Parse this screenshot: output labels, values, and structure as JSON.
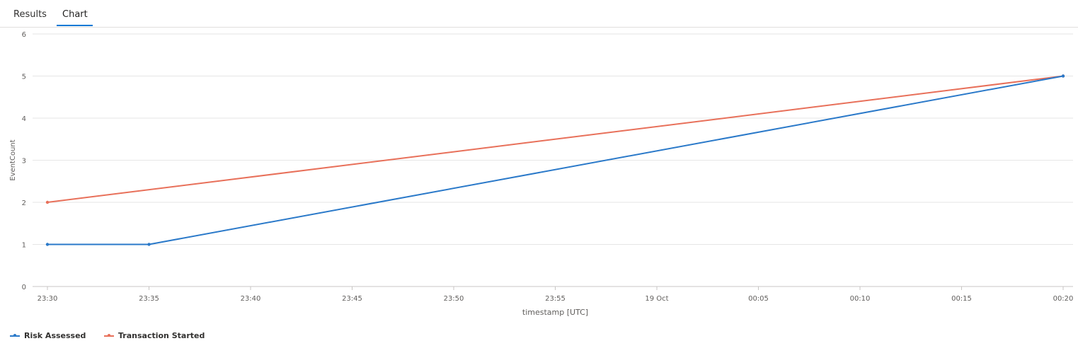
{
  "tabs": [
    {
      "label": "Results",
      "active": false
    },
    {
      "label": "Chart",
      "active": true
    }
  ],
  "colors": {
    "accent": "#0078d4",
    "series_blue": "#2a79c9",
    "series_orange": "#e8705a",
    "grid": "#e6e6e6"
  },
  "chart_data": {
    "type": "line",
    "xlabel": "timestamp [UTC]",
    "ylabel": "EventCount",
    "ylim": [
      0,
      6
    ],
    "yticks": [
      "0",
      "1",
      "2",
      "3",
      "4",
      "5",
      "6"
    ],
    "xticks": [
      "23:30",
      "23:35",
      "23:40",
      "23:45",
      "23:50",
      "23:55",
      "19 Oct",
      "00:05",
      "00:10",
      "00:15",
      "00:20"
    ],
    "grid": true,
    "legend_position": "bottom-left",
    "series": [
      {
        "name": "Risk Assessed",
        "color": "#2a79c9",
        "points": [
          {
            "x": "23:30",
            "y": 1
          },
          {
            "x": "23:35",
            "y": 1
          },
          {
            "x": "00:20",
            "y": 5
          }
        ]
      },
      {
        "name": "Transaction Started",
        "color": "#e8705a",
        "points": [
          {
            "x": "23:30",
            "y": 2
          },
          {
            "x": "00:20",
            "y": 5
          }
        ]
      }
    ]
  }
}
